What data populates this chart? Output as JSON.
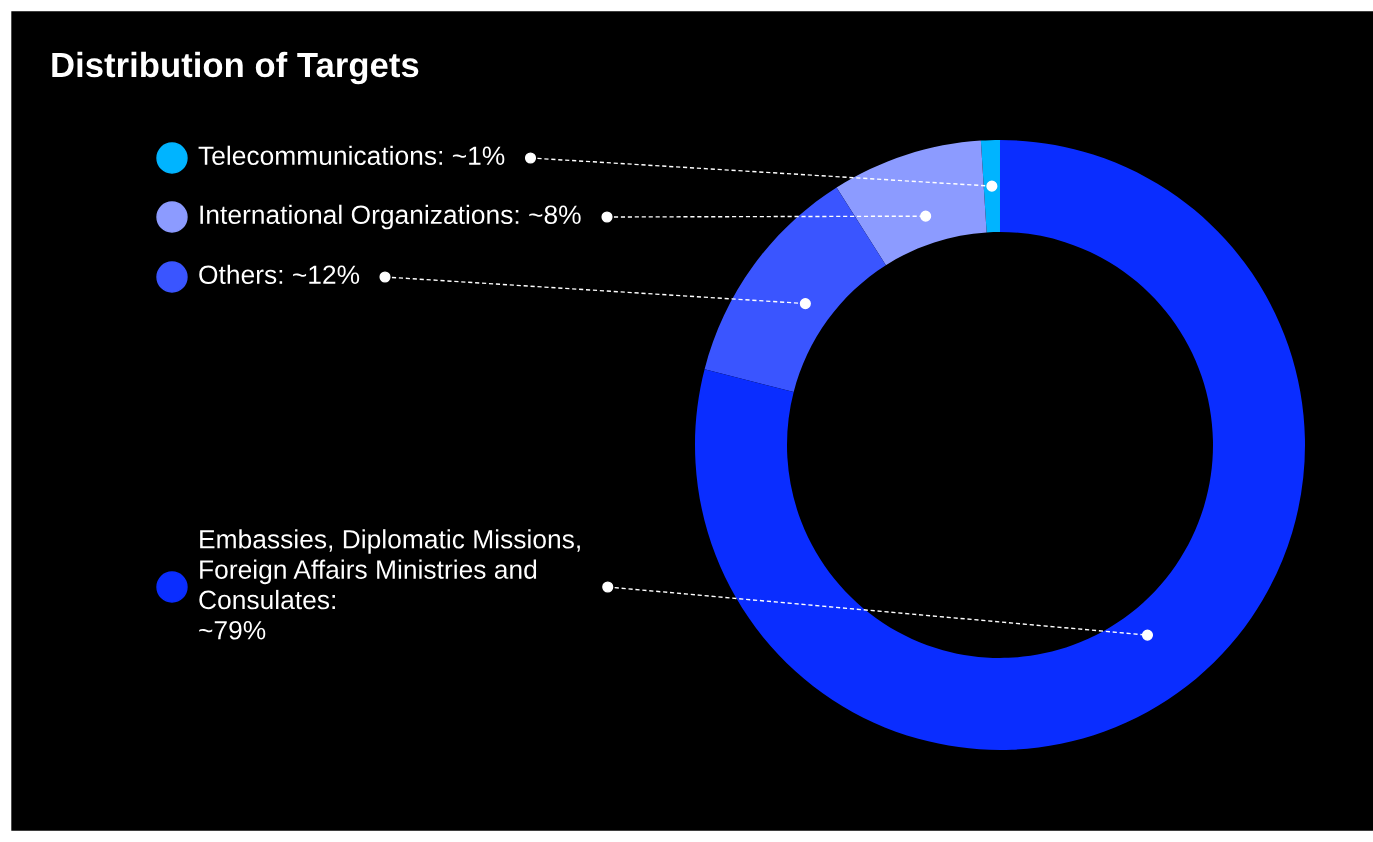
{
  "chart_data": {
    "type": "donut",
    "title": "Distribution of Targets",
    "categories": [
      "Telecommunications: ~1%",
      "International Organizations: ~8%",
      "Others: ~12%",
      "Embassies, Diplomatic Missions,\nForeign Affairs Ministries and\nConsulates:\n~79%"
    ],
    "values": [
      1,
      8,
      12,
      79
    ],
    "colors": [
      "#00b4ff",
      "#8c9bff",
      "#3a55ff",
      "#0a2dff"
    ],
    "legend": "left"
  }
}
